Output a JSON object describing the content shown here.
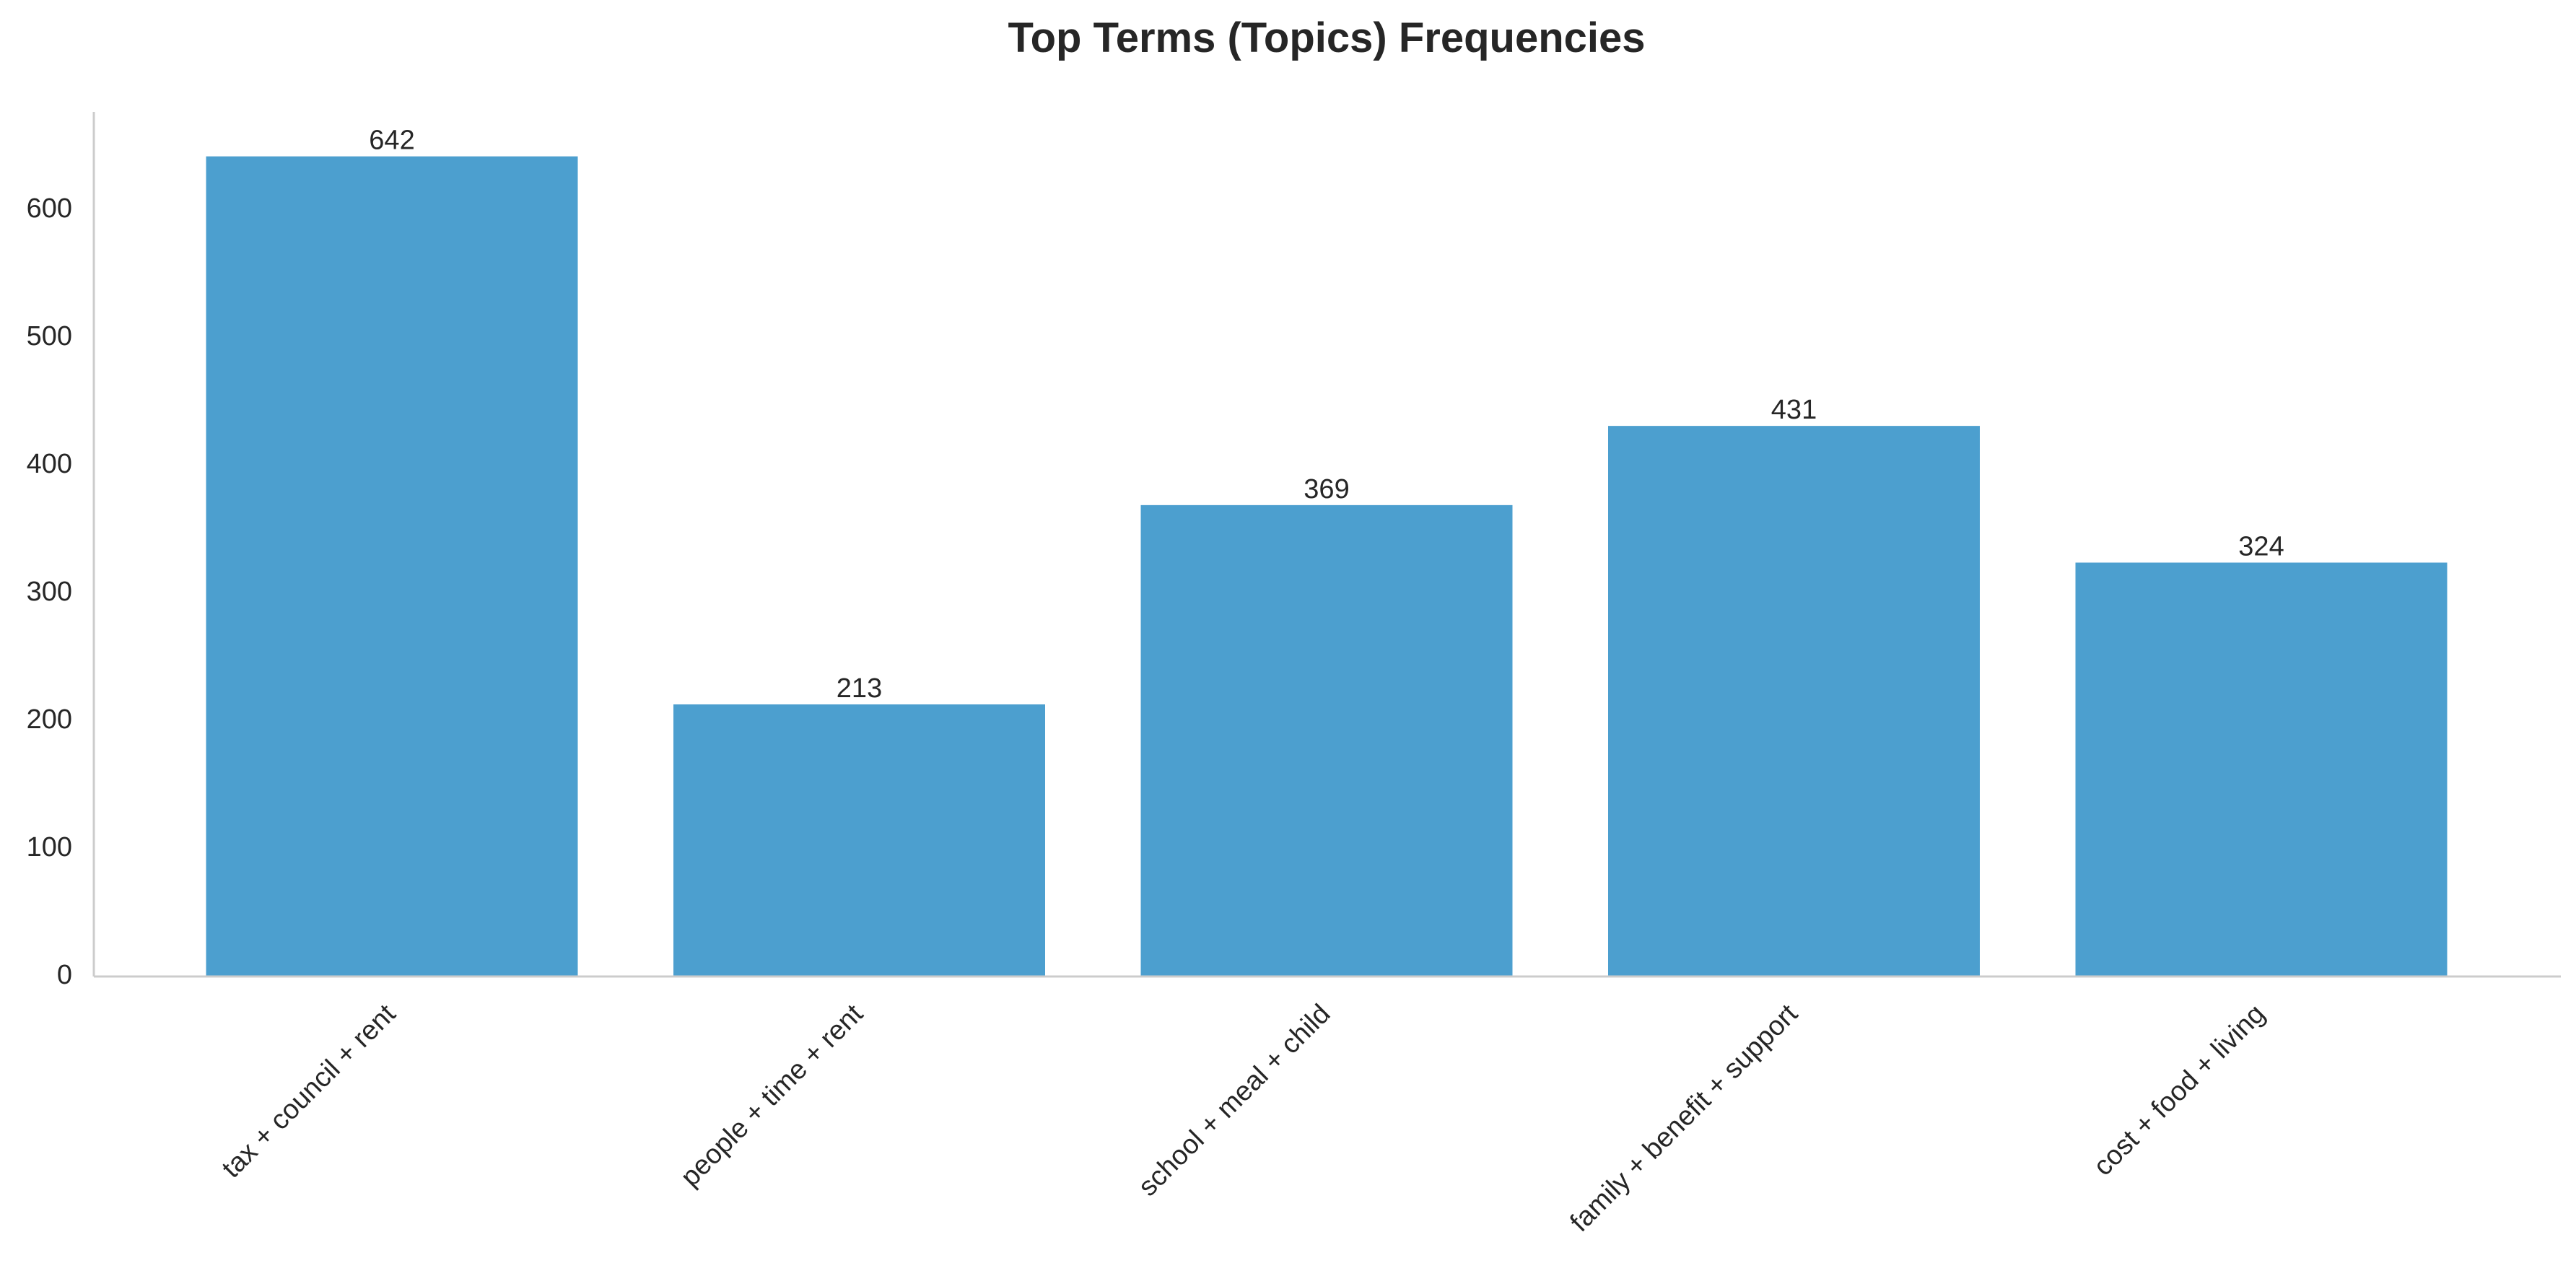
{
  "chart_data": {
    "type": "bar",
    "title": "Top Terms (Topics) Frequencies",
    "xlabel": "",
    "ylabel": "",
    "categories": [
      "tax + council + rent",
      "people + time + rent",
      "school + meal + child",
      "family + benefit + support",
      "cost + food + living"
    ],
    "values": [
      642,
      213,
      369,
      431,
      324
    ],
    "data_labels": [
      "642",
      "213",
      "369",
      "431",
      "324"
    ],
    "yticks": [
      0,
      100,
      200,
      300,
      400,
      500,
      600
    ],
    "ylim": [
      0,
      674
    ],
    "grid": false,
    "legend": "none",
    "bar_color": "#4c9fcf",
    "x_tick_rotation": -45
  }
}
